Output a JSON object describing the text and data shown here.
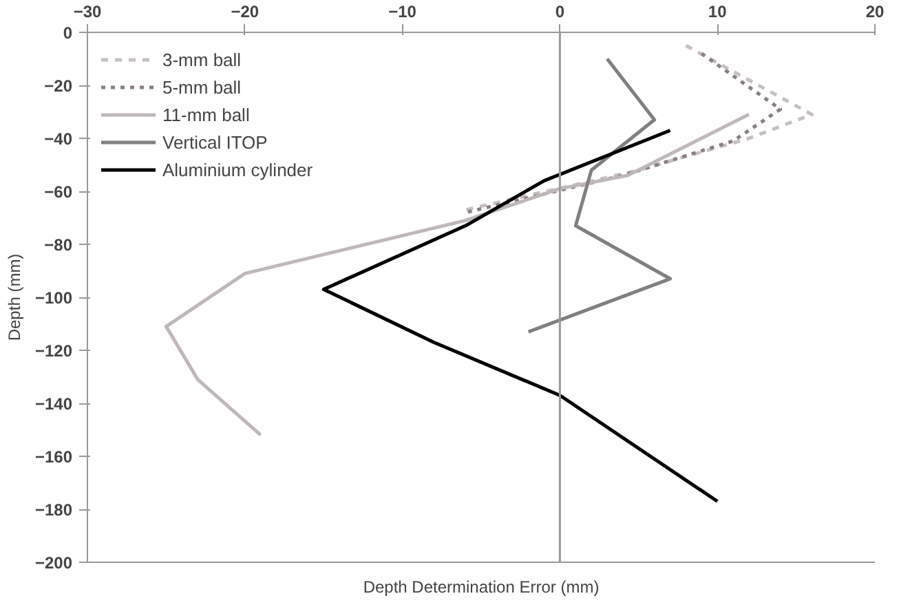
{
  "chart_data": {
    "type": "line",
    "xlabel": "Depth Determination Error (mm)",
    "ylabel": "Depth (mm)",
    "xlim": [
      -30,
      20
    ],
    "xticks": [
      -30,
      -20,
      -10,
      0,
      10,
      20
    ],
    "ylim": [
      -200,
      0
    ],
    "yticks": [
      -200,
      -180,
      -160,
      -140,
      -120,
      -100,
      -80,
      -60,
      -40,
      -20,
      0
    ],
    "grid": false,
    "legend": "top left",
    "marker": "none",
    "ref_lines": [
      {
        "axis": "x",
        "value": 0,
        "color": "#999999"
      }
    ],
    "series": [
      {
        "name": "3-mm ball",
        "color": "#c8c0c0",
        "line_style": "dashed",
        "x": [
          8,
          16,
          12,
          5,
          -6
        ],
        "values": [
          -5,
          -31,
          -40,
          -52,
          -67
        ]
      },
      {
        "name": "5-mm ball",
        "color": "#8a8080",
        "line_style": "dotted",
        "x": [
          9,
          14,
          11,
          4,
          -6
        ],
        "values": [
          -8,
          -29,
          -41,
          -54,
          -68
        ]
      },
      {
        "name": "11-mm ball",
        "color": "#c0b8b8",
        "line_style": "solid",
        "x": [
          12,
          4.3,
          0,
          -6,
          -20,
          -25,
          -23,
          -19
        ],
        "values": [
          -31,
          -54,
          -59,
          -71,
          -91,
          -111,
          -131,
          -152
        ]
      },
      {
        "name": "Vertical ITOP",
        "color": "#808080",
        "line_style": "solid",
        "x": [
          3,
          6,
          2,
          1,
          7,
          -2
        ],
        "values": [
          -10,
          -33,
          -52,
          -73,
          -93,
          -113
        ]
      },
      {
        "name": "Aluminium cylinder",
        "color": "#000000",
        "line_style": "solid",
        "x": [
          7,
          -1,
          -6,
          -15,
          -8,
          0,
          10
        ],
        "values": [
          -37,
          -56,
          -73,
          -97,
          -117,
          -137,
          -177
        ]
      }
    ]
  }
}
